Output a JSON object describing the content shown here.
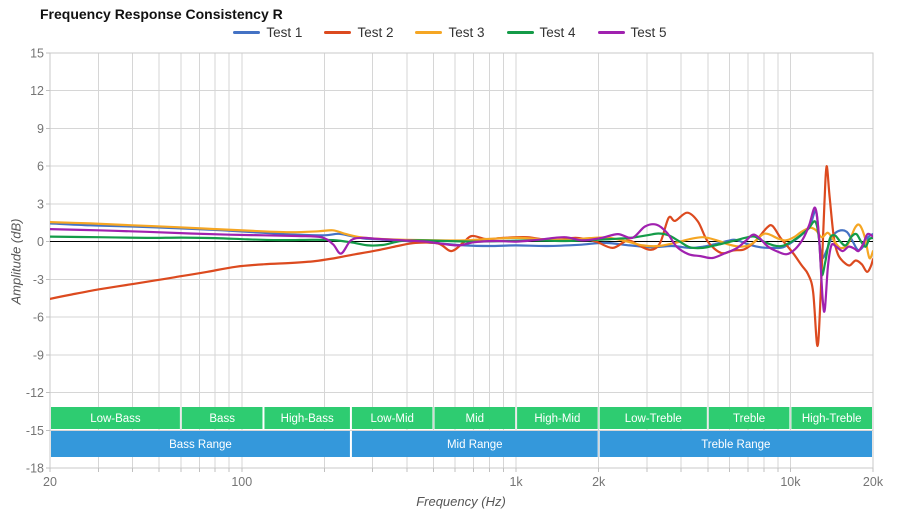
{
  "colors": {
    "grid": "#d6d6d6",
    "plot_border": "#c9c9c9",
    "tick_mark": "#c0c0c0",
    "tick_text": "#757575",
    "zero_line": "#000000",
    "band_text": "#ffffff",
    "sub_band_color": "#2ecc71",
    "range_band_color": "#3498db"
  },
  "chart_data": {
    "type": "line",
    "title": "Frequency Response Consistency R",
    "xlabel": "Frequency (Hz)",
    "ylabel": "Amplitude (dB)",
    "x_scale": "log",
    "xlim": [
      20,
      20000
    ],
    "ylim": [
      -18,
      15
    ],
    "y_tick_step": 3,
    "grid": true,
    "legend_position": "top-center",
    "zero_line_at": 0,
    "x_ticks": [
      {
        "value": 20,
        "label": "20"
      },
      {
        "value": 100,
        "label": "100"
      },
      {
        "value": 1000,
        "label": "1k"
      },
      {
        "value": 2000,
        "label": "2k"
      },
      {
        "value": 10000,
        "label": "10k"
      },
      {
        "value": 20000,
        "label": "20k"
      }
    ],
    "y_ticks": [
      15,
      12,
      9,
      6,
      3,
      0,
      -3,
      -6,
      -9,
      -12,
      -15,
      -18
    ],
    "frequency_bands": {
      "sub_bands": [
        {
          "label": "Low-Bass",
          "from": 20,
          "to": 60
        },
        {
          "label": "Bass",
          "from": 60,
          "to": 120
        },
        {
          "label": "High-Bass",
          "from": 120,
          "to": 250
        },
        {
          "label": "Low-Mid",
          "from": 250,
          "to": 500
        },
        {
          "label": "Mid",
          "from": 500,
          "to": 1000
        },
        {
          "label": "High-Mid",
          "from": 1000,
          "to": 2000
        },
        {
          "label": "Low-Treble",
          "from": 2000,
          "to": 5000
        },
        {
          "label": "Treble",
          "from": 5000,
          "to": 10000
        },
        {
          "label": "High-Treble",
          "from": 10000,
          "to": 20000
        }
      ],
      "ranges": [
        {
          "label": "Bass Range",
          "from": 20,
          "to": 250
        },
        {
          "label": "Mid Range",
          "from": 250,
          "to": 2000
        },
        {
          "label": "Treble Range",
          "from": 2000,
          "to": 20000
        }
      ]
    },
    "series": [
      {
        "name": "Test 1",
        "color": "#4472c4",
        "points": [
          [
            20,
            1.45
          ],
          [
            28,
            1.3
          ],
          [
            40,
            1.2
          ],
          [
            60,
            1.05
          ],
          [
            85,
            0.9
          ],
          [
            120,
            0.7
          ],
          [
            160,
            0.55
          ],
          [
            200,
            0.5
          ],
          [
            225,
            0.62
          ],
          [
            250,
            0.45
          ],
          [
            280,
            0.25
          ],
          [
            330,
            0.15
          ],
          [
            400,
            0.05
          ],
          [
            500,
            -0.1
          ],
          [
            650,
            -0.3
          ],
          [
            800,
            -0.35
          ],
          [
            1000,
            -0.3
          ],
          [
            1300,
            -0.35
          ],
          [
            1700,
            -0.25
          ],
          [
            2100,
            -0.1
          ],
          [
            2600,
            -0.3
          ],
          [
            3100,
            -0.45
          ],
          [
            3700,
            -0.35
          ],
          [
            4300,
            -0.5
          ],
          [
            4800,
            -0.4
          ],
          [
            5300,
            -0.2
          ],
          [
            5900,
            0.05
          ],
          [
            6300,
            0.15
          ],
          [
            7000,
            -0.2
          ],
          [
            7800,
            -0.45
          ],
          [
            8700,
            -0.5
          ],
          [
            9400,
            -0.45
          ],
          [
            10200,
            0.0
          ],
          [
            11000,
            0.55
          ],
          [
            11800,
            1.3
          ],
          [
            12400,
            2.4
          ],
          [
            12800,
            -0.4
          ],
          [
            13100,
            -1.3
          ],
          [
            13600,
            -0.6
          ],
          [
            14200,
            0.4
          ],
          [
            15000,
            0.85
          ],
          [
            16000,
            0.8
          ],
          [
            16800,
            0.1
          ],
          [
            17600,
            -0.65
          ],
          [
            18400,
            -0.4
          ],
          [
            19200,
            0.35
          ],
          [
            20000,
            0.6
          ]
        ]
      },
      {
        "name": "Test 2",
        "color": "#dc4a1f",
        "points": [
          [
            20,
            -4.55
          ],
          [
            24,
            -4.2
          ],
          [
            30,
            -3.8
          ],
          [
            38,
            -3.45
          ],
          [
            48,
            -3.1
          ],
          [
            60,
            -2.75
          ],
          [
            75,
            -2.4
          ],
          [
            95,
            -2.0
          ],
          [
            120,
            -1.8
          ],
          [
            150,
            -1.7
          ],
          [
            185,
            -1.55
          ],
          [
            220,
            -1.3
          ],
          [
            260,
            -1.0
          ],
          [
            310,
            -0.7
          ],
          [
            370,
            -0.35
          ],
          [
            430,
            -0.1
          ],
          [
            520,
            -0.15
          ],
          [
            580,
            -0.75
          ],
          [
            640,
            -0.1
          ],
          [
            690,
            0.45
          ],
          [
            780,
            0.2
          ],
          [
            900,
            0.3
          ],
          [
            1100,
            0.35
          ],
          [
            1350,
            0.1
          ],
          [
            1650,
            0.3
          ],
          [
            1950,
            0.0
          ],
          [
            2250,
            -0.5
          ],
          [
            2550,
            0.1
          ],
          [
            2800,
            -0.3
          ],
          [
            3100,
            -0.65
          ],
          [
            3350,
            -0.1
          ],
          [
            3600,
            1.9
          ],
          [
            3800,
            1.65
          ],
          [
            4200,
            2.3
          ],
          [
            4600,
            1.6
          ],
          [
            5000,
            0.0
          ],
          [
            5600,
            -0.9
          ],
          [
            6200,
            -0.7
          ],
          [
            6800,
            -0.6
          ],
          [
            7500,
            0.1
          ],
          [
            8200,
            1.1
          ],
          [
            8600,
            1.25
          ],
          [
            9200,
            0.3
          ],
          [
            9700,
            -0.3
          ],
          [
            10300,
            -1.0
          ],
          [
            11000,
            -1.9
          ],
          [
            11600,
            -2.6
          ],
          [
            12100,
            -4.0
          ],
          [
            12550,
            -8.3
          ],
          [
            12900,
            -4.0
          ],
          [
            13300,
            3.0
          ],
          [
            13550,
            6.0
          ],
          [
            13900,
            3.5
          ],
          [
            14400,
            0.3
          ],
          [
            14900,
            -1.0
          ],
          [
            15600,
            -1.6
          ],
          [
            16400,
            -1.9
          ],
          [
            17300,
            -1.5
          ],
          [
            18200,
            -1.8
          ],
          [
            19000,
            -2.4
          ],
          [
            19600,
            -2.0
          ],
          [
            20000,
            -1.4
          ]
        ]
      },
      {
        "name": "Test 3",
        "color": "#f5a623",
        "points": [
          [
            20,
            1.55
          ],
          [
            28,
            1.45
          ],
          [
            40,
            1.3
          ],
          [
            58,
            1.15
          ],
          [
            80,
            1.0
          ],
          [
            110,
            0.85
          ],
          [
            150,
            0.75
          ],
          [
            190,
            0.82
          ],
          [
            215,
            0.9
          ],
          [
            240,
            0.6
          ],
          [
            270,
            0.35
          ],
          [
            320,
            0.22
          ],
          [
            400,
            0.15
          ],
          [
            520,
            0.1
          ],
          [
            650,
            0.1
          ],
          [
            800,
            0.22
          ],
          [
            1000,
            0.3
          ],
          [
            1250,
            0.2
          ],
          [
            1550,
            0.15
          ],
          [
            1850,
            0.28
          ],
          [
            2150,
            0.32
          ],
          [
            2500,
            0.05
          ],
          [
            2900,
            -0.3
          ],
          [
            3300,
            -0.35
          ],
          [
            3800,
            -0.1
          ],
          [
            4300,
            0.2
          ],
          [
            4800,
            0.35
          ],
          [
            5400,
            0.1
          ],
          [
            6000,
            -0.25
          ],
          [
            6600,
            -0.4
          ],
          [
            7200,
            -0.2
          ],
          [
            7900,
            0.55
          ],
          [
            8300,
            0.6
          ],
          [
            9000,
            0.25
          ],
          [
            9600,
            0.1
          ],
          [
            10300,
            0.35
          ],
          [
            11000,
            0.8
          ],
          [
            11800,
            1.1
          ],
          [
            12400,
            0.9
          ],
          [
            13000,
            0.35
          ],
          [
            13700,
            0.7
          ],
          [
            14400,
            0.1
          ],
          [
            15200,
            -0.5
          ],
          [
            16200,
            -0.2
          ],
          [
            17200,
            1.1
          ],
          [
            17900,
            1.3
          ],
          [
            18700,
            0.3
          ],
          [
            19400,
            -1.3
          ],
          [
            20000,
            -0.75
          ]
        ]
      },
      {
        "name": "Test 4",
        "color": "#149b48",
        "points": [
          [
            20,
            0.4
          ],
          [
            30,
            0.35
          ],
          [
            45,
            0.3
          ],
          [
            60,
            0.32
          ],
          [
            80,
            0.28
          ],
          [
            105,
            0.18
          ],
          [
            140,
            0.12
          ],
          [
            180,
            0.15
          ],
          [
            215,
            0.12
          ],
          [
            250,
            -0.05
          ],
          [
            290,
            -0.3
          ],
          [
            330,
            -0.25
          ],
          [
            380,
            0.05
          ],
          [
            450,
            0.1
          ],
          [
            560,
            0.05
          ],
          [
            700,
            0.0
          ],
          [
            900,
            0.05
          ],
          [
            1150,
            0.1
          ],
          [
            1450,
            0.05
          ],
          [
            1800,
            0.1
          ],
          [
            2200,
            0.2
          ],
          [
            2600,
            0.3
          ],
          [
            3000,
            0.5
          ],
          [
            3300,
            0.65
          ],
          [
            3600,
            0.5
          ],
          [
            3950,
            0.0
          ],
          [
            4300,
            -0.45
          ],
          [
            4800,
            -0.5
          ],
          [
            5300,
            -0.3
          ],
          [
            5800,
            -0.1
          ],
          [
            6300,
            0.1
          ],
          [
            7000,
            0.35
          ],
          [
            7400,
            0.4
          ],
          [
            8000,
            0.0
          ],
          [
            8700,
            -0.3
          ],
          [
            9300,
            -0.35
          ],
          [
            10000,
            -0.05
          ],
          [
            10800,
            0.45
          ],
          [
            11600,
            1.0
          ],
          [
            12300,
            1.6
          ],
          [
            12700,
            0.3
          ],
          [
            13000,
            -2.6
          ],
          [
            13400,
            -1.6
          ],
          [
            13900,
            0.2
          ],
          [
            14500,
            0.5
          ],
          [
            15200,
            0.0
          ],
          [
            15900,
            -0.3
          ],
          [
            16700,
            0.4
          ],
          [
            17400,
            0.6
          ],
          [
            18100,
            0.0
          ],
          [
            18800,
            -0.4
          ],
          [
            19400,
            0.2
          ],
          [
            20000,
            0.3
          ]
        ]
      },
      {
        "name": "Test 5",
        "color": "#a021af",
        "points": [
          [
            20,
            1.0
          ],
          [
            30,
            0.9
          ],
          [
            45,
            0.78
          ],
          [
            65,
            0.65
          ],
          [
            90,
            0.55
          ],
          [
            120,
            0.5
          ],
          [
            160,
            0.45
          ],
          [
            195,
            0.35
          ],
          [
            215,
            -0.2
          ],
          [
            230,
            -0.95
          ],
          [
            250,
            0.1
          ],
          [
            275,
            0.3
          ],
          [
            320,
            0.2
          ],
          [
            390,
            0.1
          ],
          [
            470,
            0.0
          ],
          [
            550,
            -0.2
          ],
          [
            620,
            -0.3
          ],
          [
            700,
            -0.05
          ],
          [
            850,
            0.05
          ],
          [
            1000,
            0.0
          ],
          [
            1200,
            0.15
          ],
          [
            1500,
            0.35
          ],
          [
            1750,
            0.1
          ],
          [
            2050,
            0.3
          ],
          [
            2350,
            0.6
          ],
          [
            2650,
            0.3
          ],
          [
            2950,
            1.2
          ],
          [
            3250,
            1.35
          ],
          [
            3550,
            0.7
          ],
          [
            3850,
            -0.4
          ],
          [
            4250,
            -1.0
          ],
          [
            4700,
            -1.15
          ],
          [
            5200,
            -1.3
          ],
          [
            5800,
            -0.9
          ],
          [
            6400,
            -0.5
          ],
          [
            6900,
            0.1
          ],
          [
            7300,
            0.55
          ],
          [
            7700,
            0.3
          ],
          [
            8300,
            -0.4
          ],
          [
            9000,
            -0.8
          ],
          [
            9700,
            -1.0
          ],
          [
            10400,
            -0.6
          ],
          [
            11100,
            0.2
          ],
          [
            11700,
            1.3
          ],
          [
            12300,
            2.7
          ],
          [
            12700,
            0.5
          ],
          [
            13100,
            -4.5
          ],
          [
            13350,
            -5.4
          ],
          [
            13700,
            -2.0
          ],
          [
            14100,
            -0.3
          ],
          [
            14700,
            -0.4
          ],
          [
            15500,
            -0.75
          ],
          [
            16300,
            -0.4
          ],
          [
            17100,
            -0.55
          ],
          [
            17700,
            -0.75
          ],
          [
            18400,
            -0.2
          ],
          [
            19100,
            0.6
          ],
          [
            20000,
            0.4
          ]
        ]
      }
    ]
  }
}
